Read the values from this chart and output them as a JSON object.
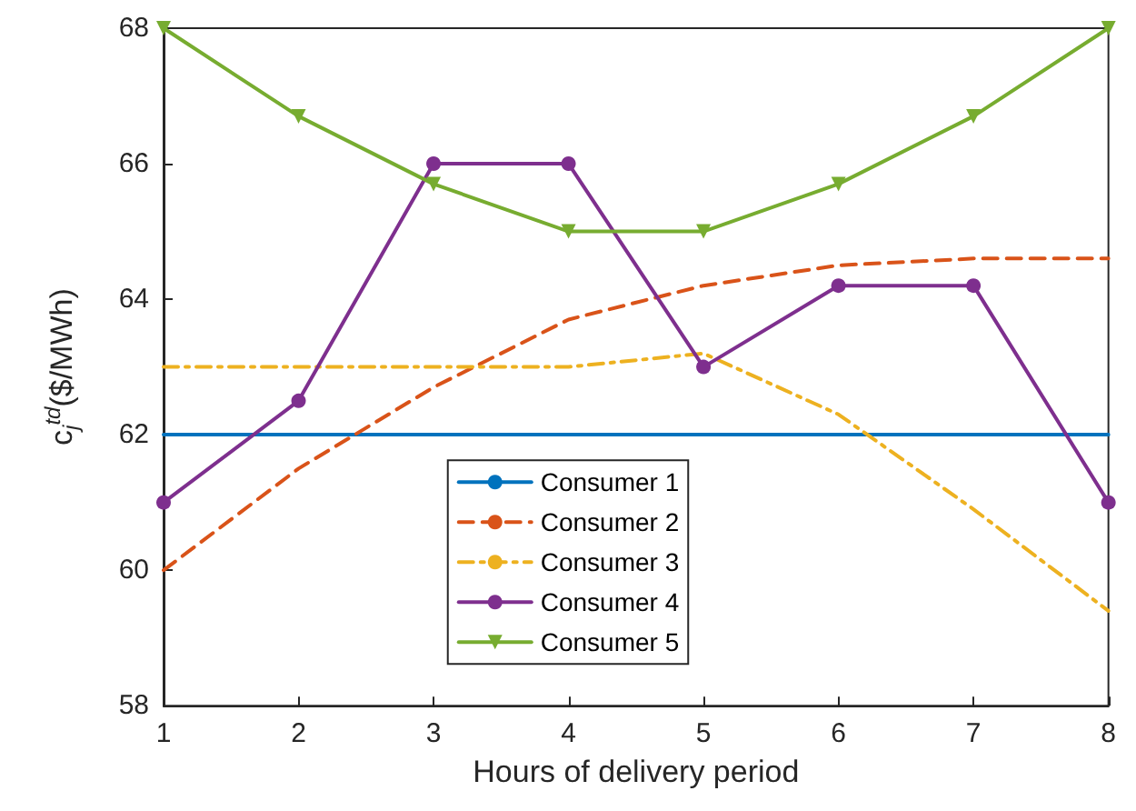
{
  "chart_data": {
    "type": "line",
    "xlabel": "Hours of delivery period",
    "ylabel": "c$_{j}$$^{td}$($/MWh)",
    "x": [
      1,
      2,
      3,
      4,
      5,
      6,
      7,
      8
    ],
    "xlim": [
      1,
      8
    ],
    "xticks": [
      1,
      2,
      3,
      4,
      5,
      6,
      7,
      8
    ],
    "ylim": [
      58,
      68
    ],
    "yticks": [
      58,
      60,
      62,
      64,
      66,
      68
    ],
    "grid": false,
    "legend": "bottom",
    "series": [
      {
        "name": "Consumer 1",
        "color": "#0072bd",
        "line_style": "solid",
        "marker": "none",
        "values": [
          62,
          62,
          62,
          62,
          62,
          62,
          62,
          62
        ]
      },
      {
        "name": "Consumer 2",
        "color": "#d95319",
        "line_style": "dashed",
        "marker": "none",
        "values": [
          60,
          61.5,
          62.7,
          63.7,
          64.2,
          64.5,
          64.6,
          64.6
        ]
      },
      {
        "name": "Consumer 3",
        "color": "#edb120",
        "line_style": "dashdot",
        "marker": "none",
        "values": [
          63,
          63,
          63,
          63,
          63.2,
          62.3,
          60.9,
          59.4
        ]
      },
      {
        "name": "Consumer 4",
        "color": "#7e2f8e",
        "line_style": "solid",
        "marker": "circle",
        "values": [
          61,
          62.5,
          66,
          66,
          63,
          64.2,
          64.2,
          61
        ]
      },
      {
        "name": "Consumer 5",
        "color": "#77ac30",
        "line_style": "solid",
        "marker": "triangle",
        "values": [
          68,
          66.7,
          65.7,
          65,
          65,
          65.7,
          66.7,
          68
        ]
      }
    ]
  }
}
